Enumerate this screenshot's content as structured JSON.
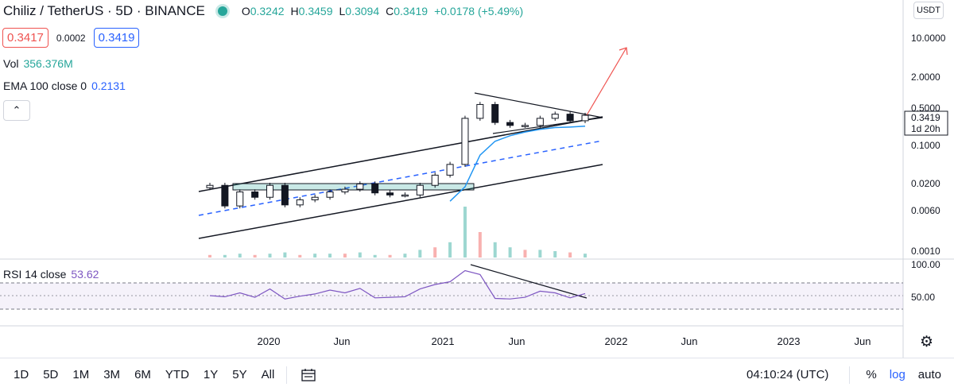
{
  "header": {
    "symbol": "Chiliz / TetherUS · 5D · BINANCE",
    "open": "0.3242",
    "high": "0.3459",
    "low": "0.3094",
    "close": "0.3419",
    "change": "+0.0178 (+5.49%)",
    "open_label": "O",
    "high_label": "H",
    "low_label": "L",
    "close_label": "C"
  },
  "prices": {
    "bid": "0.3417",
    "spread": "0.0002",
    "ask": "0.3419"
  },
  "indicators": {
    "vol_label": "Vol",
    "vol_value": "356.376M",
    "ema_label": "EMA 100 close 0",
    "ema_value": "0.2131",
    "rsi_label": "RSI 14 close",
    "rsi_value": "53.62"
  },
  "currency_button": "USDT",
  "price_scale": {
    "labels": [
      "10.0000",
      "2.0000",
      "0.5000",
      "0.1000",
      "0.0200",
      "0.0060",
      "0.0010"
    ],
    "current_price": "0.3419",
    "countdown": "1d 20h"
  },
  "rsi_scale": {
    "labels": [
      "100.00",
      "50.00"
    ]
  },
  "time_axis": {
    "labels": [
      "2020",
      "Jun",
      "2021",
      "Jun",
      "2022",
      "Jun",
      "2023",
      "Jun"
    ]
  },
  "toolbar": {
    "timeframes": [
      "1D",
      "5D",
      "1M",
      "3M",
      "6M",
      "YTD",
      "1Y",
      "5Y",
      "All"
    ],
    "clock": "04:10:24 (UTC)",
    "percent": "%",
    "log": "log",
    "auto": "auto"
  },
  "colors": {
    "up": "#26a69a",
    "down": "#ef5350",
    "ema": "#2196f3",
    "rsi": "#7e57c2",
    "arrow": "#ef5350"
  },
  "chart_data": {
    "type": "line",
    "title": "Chiliz / TetherUS · 5D · BINANCE",
    "y_scale": "log",
    "ylim": [
      0.001,
      10
    ],
    "x": [
      "2019-10",
      "2019-11",
      "2019-12",
      "2020-01",
      "2020-02",
      "2020-03",
      "2020-04",
      "2020-05",
      "2020-06",
      "2020-07",
      "2020-08",
      "2020-09",
      "2020-10",
      "2020-11",
      "2020-12",
      "2021-01",
      "2021-02",
      "2021-03",
      "2021-04",
      "2021-05",
      "2021-06",
      "2021-07",
      "2021-08",
      "2021-09",
      "2021-10",
      "2021-11"
    ],
    "series": [
      {
        "name": "Chiliz / TetherUS",
        "values": [
          0.016,
          0.0065,
          0.012,
          0.0095,
          0.016,
          0.0068,
          0.0085,
          0.0095,
          0.012,
          0.0135,
          0.017,
          0.0115,
          0.0105,
          0.0105,
          0.016,
          0.025,
          0.04,
          0.3,
          0.55,
          0.25,
          0.22,
          0.22,
          0.3,
          0.36,
          0.27,
          0.3419
        ]
      },
      {
        "name": "EMA 100 close 0",
        "values": [
          null,
          null,
          null,
          null,
          null,
          null,
          null,
          null,
          null,
          null,
          null,
          null,
          null,
          null,
          null,
          null,
          0.008,
          0.015,
          0.06,
          0.11,
          0.14,
          0.165,
          0.185,
          0.2,
          0.205,
          0.2131
        ]
      },
      {
        "name": "RSI 14 close",
        "values": [
          50,
          48,
          55,
          47,
          62,
          44,
          49,
          53,
          60,
          55,
          63,
          46,
          47,
          48,
          62,
          70,
          75,
          95,
          88,
          45,
          44,
          47,
          58,
          55,
          46,
          53.62
        ]
      }
    ],
    "volume": [
      2,
      2,
      3,
      2,
      3,
      4,
      2,
      3,
      3,
      3,
      4,
      2,
      2,
      3,
      6,
      8,
      12,
      40,
      20,
      12,
      8,
      6,
      6,
      5,
      4,
      3
    ]
  }
}
